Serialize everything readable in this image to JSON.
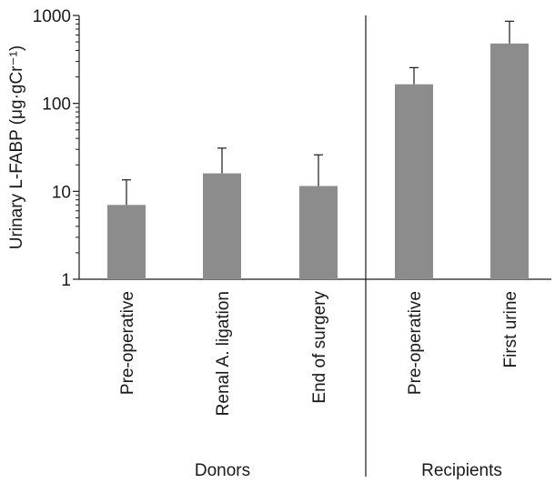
{
  "chart_data": {
    "type": "bar",
    "ylabel": "Urinary L-FABP (μg·gCr⁻¹)",
    "yscale": "log",
    "ylim": [
      1,
      1000
    ],
    "yticks": [
      "1",
      "10",
      "100",
      "1000"
    ],
    "categories": [
      "Pre-operative",
      "Renal A. ligation",
      "End of surgery",
      "Pre-operative",
      "First urine"
    ],
    "values": [
      7,
      16,
      11.5,
      165,
      480
    ],
    "error_upper": [
      13.5,
      31,
      26,
      255,
      860
    ],
    "groups": [
      {
        "label": "Donors",
        "categories": [
          0,
          1,
          2
        ]
      },
      {
        "label": "Recipients",
        "categories": [
          3,
          4
        ]
      }
    ],
    "bar_color": "#8c8c8c",
    "grid": false
  }
}
